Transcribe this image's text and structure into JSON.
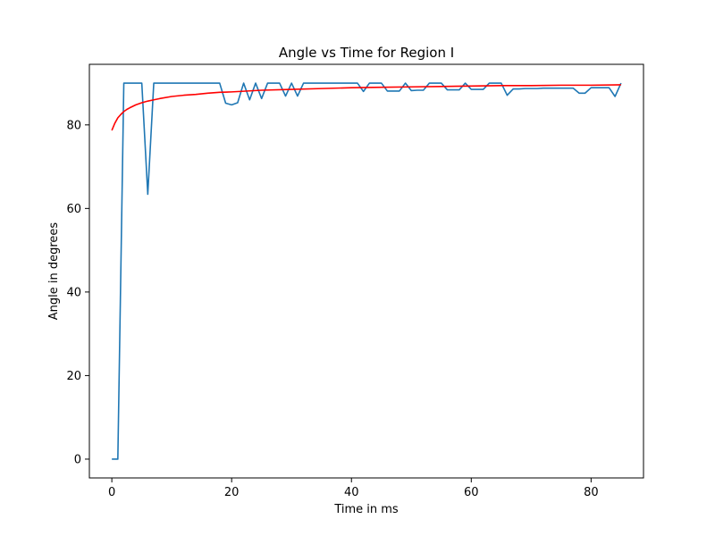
{
  "chart_data": {
    "type": "line",
    "title": "Angle vs Time for Region I",
    "xlabel": "Time in ms",
    "ylabel": "Angle in degrees",
    "xlim": [
      -3.75,
      88.75
    ],
    "ylim": [
      -4.5,
      94.5
    ],
    "xticks": [
      0,
      20,
      40,
      60,
      80
    ],
    "yticks": [
      0,
      20,
      40,
      60,
      80
    ],
    "grid": false,
    "series": [
      {
        "color": "#1f77b4",
        "x": [
          0,
          1,
          2,
          3,
          4,
          5,
          6,
          7,
          8,
          9,
          10,
          11,
          12,
          13,
          14,
          15,
          16,
          17,
          18,
          19,
          20,
          21,
          22,
          23,
          24,
          25,
          26,
          27,
          28,
          29,
          30,
          31,
          32,
          33,
          34,
          35,
          36,
          37,
          38,
          39,
          40,
          41,
          42,
          43,
          44,
          45,
          46,
          47,
          48,
          49,
          50,
          51,
          52,
          53,
          54,
          55,
          56,
          57,
          58,
          59,
          60,
          61,
          62,
          63,
          64,
          65,
          66,
          67,
          68,
          69,
          70,
          71,
          72,
          73,
          74,
          75,
          76,
          77,
          78,
          79,
          80,
          81,
          82,
          83,
          84,
          85
        ],
        "y": [
          0,
          0,
          90,
          90,
          90,
          90,
          63.4,
          90,
          90,
          90,
          90,
          90,
          90,
          90,
          90,
          90,
          90,
          90,
          90,
          85.2,
          84.8,
          85.3,
          90,
          86,
          90,
          86.3,
          90,
          90,
          90,
          86.9,
          90,
          86.9,
          90,
          90,
          90,
          90,
          90,
          90,
          90,
          90,
          90,
          90,
          88,
          90,
          90,
          90,
          88.1,
          88.1,
          88.1,
          90,
          88.2,
          88.3,
          88.3,
          90,
          90,
          90,
          88.4,
          88.4,
          88.4,
          90,
          88.5,
          88.5,
          88.5,
          90,
          90,
          90,
          87.1,
          88.6,
          88.6,
          88.7,
          88.7,
          88.7,
          88.8,
          88.8,
          88.8,
          88.8,
          88.8,
          88.8,
          87.6,
          87.6,
          88.9,
          88.9,
          88.9,
          88.9,
          86.8,
          90
        ]
      },
      {
        "color": "#ff0000",
        "x": [
          0,
          0.5,
          1,
          1.5,
          2,
          2.5,
          3,
          4,
          5,
          6,
          7,
          8,
          10,
          12,
          14,
          16,
          18,
          20,
          25,
          30,
          35,
          40,
          45,
          50,
          55,
          60,
          65,
          70,
          75,
          80,
          85
        ],
        "y": [
          78.7,
          80.4,
          81.7,
          82.5,
          83.2,
          83.7,
          84.1,
          84.8,
          85.3,
          85.7,
          86.0,
          86.3,
          86.8,
          87.1,
          87.3,
          87.6,
          87.8,
          87.9,
          88.3,
          88.5,
          88.7,
          88.9,
          89.0,
          89.1,
          89.2,
          89.3,
          89.4,
          89.4,
          89.5,
          89.5,
          89.6
        ]
      }
    ]
  }
}
